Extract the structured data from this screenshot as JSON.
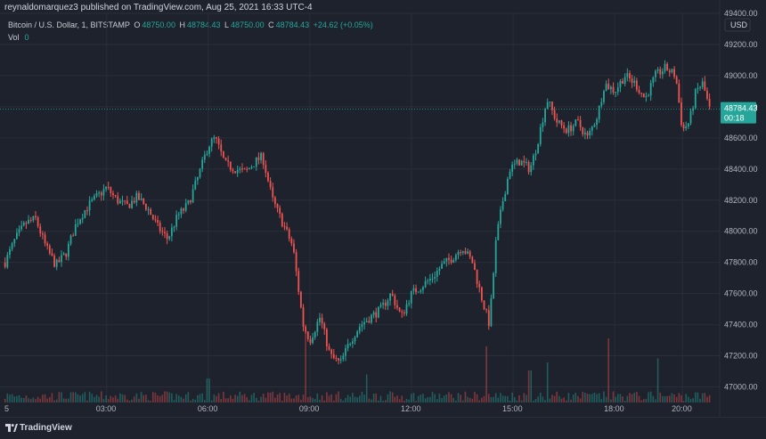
{
  "header": {
    "published": "reynaldomarquez3 published on TradingView.com, Aug 25, 2021 16:33 UTC-4"
  },
  "legend": {
    "symbol": "Bitcoin / U.S. Dollar, 1, BITSTAMP",
    "open_label": "O",
    "open": "48750.00",
    "high_label": "H",
    "high": "48784.43",
    "low_label": "L",
    "low": "48750.00",
    "close_label": "C",
    "close": "48784.43",
    "change": "+24.62 (+0.05%)",
    "vol_label": "Vol",
    "vol": "0"
  },
  "footer": {
    "brand": "TradingView"
  },
  "colors": {
    "background": "#1e222d",
    "up": "#26a69a",
    "down": "#ef5350",
    "grid": "#2a2e39",
    "price_tag": "#26a69a"
  },
  "chart_data": {
    "type": "candlestick",
    "title": "Bitcoin / U.S. Dollar, 1, BITSTAMP",
    "currency": "USD",
    "ylim": [
      46900,
      49400
    ],
    "y_ticks": [
      "49400.00",
      "49200.00",
      "49000.00",
      "48800.00",
      "48600.00",
      "48400.00",
      "48200.00",
      "48000.00",
      "47800.00",
      "47600.00",
      "47400.00",
      "47200.00",
      "47000.00"
    ],
    "x_ticks": [
      {
        "label": "5",
        "hour": 0
      },
      {
        "label": "03:00",
        "hour": 3
      },
      {
        "label": "06:00",
        "hour": 6
      },
      {
        "label": "09:00",
        "hour": 9
      },
      {
        "label": "12:00",
        "hour": 12
      },
      {
        "label": "15:00",
        "hour": 15
      },
      {
        "label": "18:00",
        "hour": 18
      },
      {
        "label": "20:00",
        "hour": 20
      }
    ],
    "hour_range": [
      -0.15,
      21.1
    ],
    "last_price": "48784.43",
    "countdown": "00:18",
    "price_path": [
      [
        0.0,
        47800
      ],
      [
        0.3,
        47950
      ],
      [
        0.6,
        48050
      ],
      [
        0.9,
        48080
      ],
      [
        1.2,
        47900
      ],
      [
        1.5,
        47780
      ],
      [
        1.8,
        47860
      ],
      [
        2.1,
        48050
      ],
      [
        2.4,
        48150
      ],
      [
        2.7,
        48220
      ],
      [
        3.0,
        48280
      ],
      [
        3.3,
        48200
      ],
      [
        3.6,
        48160
      ],
      [
        3.9,
        48220
      ],
      [
        4.2,
        48150
      ],
      [
        4.5,
        48030
      ],
      [
        4.8,
        47950
      ],
      [
        5.1,
        48100
      ],
      [
        5.4,
        48170
      ],
      [
        5.7,
        48350
      ],
      [
        6.0,
        48550
      ],
      [
        6.2,
        48600
      ],
      [
        6.5,
        48430
      ],
      [
        6.8,
        48400
      ],
      [
        7.1,
        48380
      ],
      [
        7.4,
        48450
      ],
      [
        7.6,
        48480
      ],
      [
        7.9,
        48200
      ],
      [
        8.2,
        48050
      ],
      [
        8.5,
        47900
      ],
      [
        8.8,
        47400
      ],
      [
        9.0,
        47300
      ],
      [
        9.3,
        47450
      ],
      [
        9.6,
        47200
      ],
      [
        9.9,
        47150
      ],
      [
        10.2,
        47300
      ],
      [
        10.5,
        47400
      ],
      [
        10.8,
        47450
      ],
      [
        11.1,
        47500
      ],
      [
        11.4,
        47600
      ],
      [
        11.7,
        47450
      ],
      [
        12.0,
        47600
      ],
      [
        12.3,
        47650
      ],
      [
        12.6,
        47700
      ],
      [
        12.9,
        47780
      ],
      [
        13.2,
        47830
      ],
      [
        13.5,
        47900
      ],
      [
        13.8,
        47800
      ],
      [
        14.1,
        47550
      ],
      [
        14.3,
        47400
      ],
      [
        14.5,
        47950
      ],
      [
        14.7,
        48200
      ],
      [
        14.9,
        48400
      ],
      [
        15.2,
        48450
      ],
      [
        15.5,
        48400
      ],
      [
        15.7,
        48550
      ],
      [
        16.0,
        48850
      ],
      [
        16.3,
        48700
      ],
      [
        16.6,
        48650
      ],
      [
        16.9,
        48700
      ],
      [
        17.2,
        48600
      ],
      [
        17.5,
        48750
      ],
      [
        17.7,
        48950
      ],
      [
        18.0,
        48900
      ],
      [
        18.3,
        49000
      ],
      [
        18.6,
        48950
      ],
      [
        18.9,
        48850
      ],
      [
        19.2,
        49000
      ],
      [
        19.5,
        49050
      ],
      [
        19.8,
        49000
      ],
      [
        20.0,
        48650
      ],
      [
        20.2,
        48700
      ],
      [
        20.4,
        48900
      ],
      [
        20.6,
        48950
      ],
      [
        20.8,
        48784
      ]
    ],
    "volume_spikes": [
      {
        "hour": 8.9,
        "vol": 0.9
      },
      {
        "hour": 14.2,
        "vol": 0.7
      },
      {
        "hour": 16.0,
        "vol": 0.5
      },
      {
        "hour": 17.8,
        "vol": 0.8
      },
      {
        "hour": 19.3,
        "vol": 0.55
      },
      {
        "hour": 6.0,
        "vol": 0.3
      },
      {
        "hour": 10.7,
        "vol": 0.35
      },
      {
        "hour": 15.5,
        "vol": 0.4
      }
    ]
  }
}
